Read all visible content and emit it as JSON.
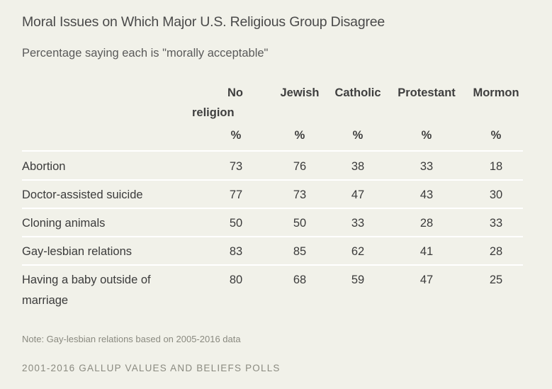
{
  "chart_data": {
    "type": "table",
    "title": "Moral Issues on Which Major U.S. Religious Group Disagree",
    "subtitle": "Percentage saying each is \"morally acceptable\"",
    "columns": [
      {
        "label": "No religion",
        "unit": "%"
      },
      {
        "label": "Jewish",
        "unit": "%"
      },
      {
        "label": "Catholic",
        "unit": "%"
      },
      {
        "label": "Protestant",
        "unit": "%"
      },
      {
        "label": "Mormon",
        "unit": "%"
      }
    ],
    "rows": [
      {
        "label": "Abortion",
        "values": [
          73,
          76,
          38,
          33,
          18
        ]
      },
      {
        "label": "Doctor-assisted suicide",
        "values": [
          77,
          73,
          47,
          43,
          30
        ]
      },
      {
        "label": "Cloning animals",
        "values": [
          50,
          50,
          33,
          28,
          33
        ]
      },
      {
        "label": "Gay-lesbian relations",
        "values": [
          83,
          85,
          62,
          41,
          28
        ]
      },
      {
        "label": "Having a baby outside of marriage",
        "values": [
          80,
          68,
          59,
          47,
          25
        ]
      }
    ],
    "note": "Note: Gay-lesbian relations based on 2005-2016 data",
    "source": "2001-2016 GALLUP VALUES AND BELIEFS POLLS"
  },
  "colors": {
    "background": "#f1f1e9",
    "rule": "#ffffff",
    "text": "#3b3b3b",
    "muted": "#8a8a80"
  }
}
